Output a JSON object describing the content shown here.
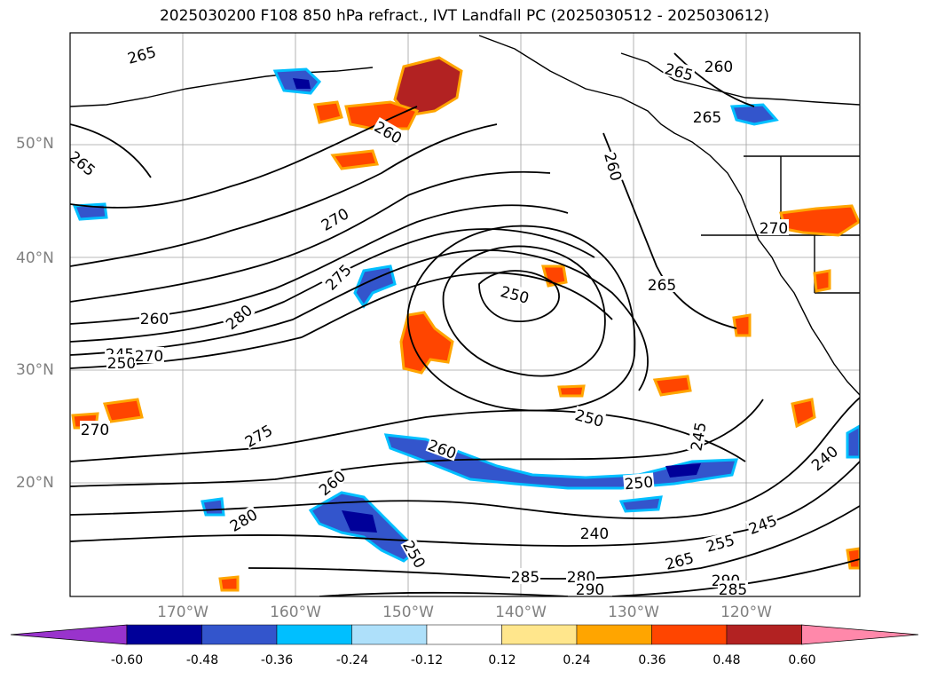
{
  "title": "2025030200 F108 850 hPa refract., IVT Landfall PC (2025030512 - 2025030612)",
  "lat_labels": [
    "50°N",
    "40°N",
    "30°N",
    "20°N"
  ],
  "lon_labels": [
    "170°W",
    "160°W",
    "150°W",
    "140°W",
    "130°W",
    "120°W"
  ],
  "colorbar": {
    "tick_labels": [
      "-0.60",
      "-0.48",
      "-0.36",
      "-0.24",
      "-0.12",
      "0.12",
      "0.24",
      "0.36",
      "0.48",
      "0.60"
    ],
    "colors": [
      "#9933cc",
      "#000099",
      "#3355cc",
      "#00bfff",
      "#aee0fa",
      "#ffffff",
      "#ffe68c",
      "#ffa500",
      "#ff4500",
      "#b22222",
      "#ff88aa"
    ]
  },
  "contour_labels": [
    "265",
    "260",
    "265",
    "260",
    "265",
    "265",
    "260",
    "270",
    "275",
    "250",
    "265",
    "260",
    "280",
    "245",
    "250",
    "270",
    "275",
    "250",
    "260",
    "245",
    "240",
    "250",
    "280",
    "240",
    "245",
    "255",
    "265",
    "280",
    "285",
    "290",
    "290",
    "285",
    "270",
    "270",
    "260",
    "250"
  ],
  "colors": {
    "contour": "#000000",
    "grid": "#a0a0a0",
    "axis_label": "#808080"
  }
}
